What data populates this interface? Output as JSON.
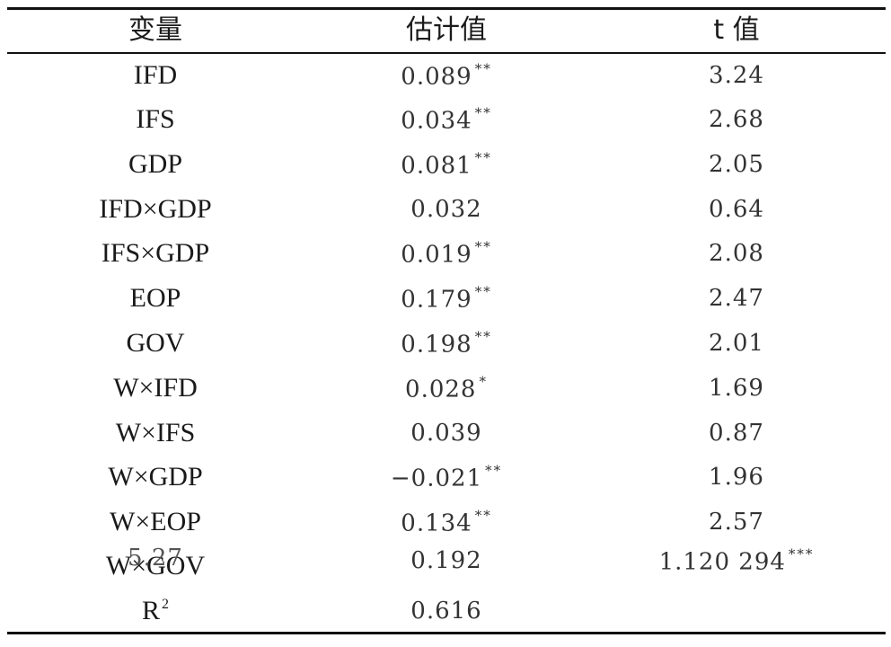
{
  "table": {
    "headers": [
      "变量",
      "估计值",
      "t 值"
    ],
    "rows": [
      {
        "variable": "IFD",
        "estimate": "0.089",
        "estimate_sig": "**",
        "t": "3.24",
        "t_sig": ""
      },
      {
        "variable": "IFS",
        "estimate": "0.034",
        "estimate_sig": "**",
        "t": "2.68",
        "t_sig": ""
      },
      {
        "variable": "GDP",
        "estimate": "0.081",
        "estimate_sig": "**",
        "t": "2.05",
        "t_sig": ""
      },
      {
        "variable": "IFD×GDP",
        "estimate": "0.032",
        "estimate_sig": "",
        "t": "0.64",
        "t_sig": ""
      },
      {
        "variable": "IFS×GDP",
        "estimate": "0.019",
        "estimate_sig": "**",
        "t": "2.08",
        "t_sig": ""
      },
      {
        "variable": "EOP",
        "estimate": "0.179",
        "estimate_sig": "**",
        "t": "2.47",
        "t_sig": ""
      },
      {
        "variable": "GOV",
        "estimate": "0.198",
        "estimate_sig": "**",
        "t": "2.01",
        "t_sig": ""
      },
      {
        "variable": "W×IFD",
        "estimate": "0.028",
        "estimate_sig": "*",
        "t": "1.69",
        "t_sig": ""
      },
      {
        "variable": "W×IFS",
        "estimate": "0.039",
        "estimate_sig": "",
        "t": "0.87",
        "t_sig": ""
      },
      {
        "variable": "W×GDP",
        "estimate": "−0.021",
        "estimate_sig": "**",
        "t": "1.96",
        "t_sig": ""
      },
      {
        "variable": "W×EOP",
        "estimate": "0.134",
        "estimate_sig": "**",
        "t": "2.57",
        "t_sig": ""
      },
      {
        "variable": "W×GOV",
        "estimate": "0.192",
        "estimate_sig": "",
        "t": "1.120 294",
        "t_sig": "***"
      },
      {
        "variable": "R",
        "variable_sup": "2",
        "estimate": "0.616",
        "estimate_sig": "",
        "t": "",
        "t_sig": ""
      }
    ],
    "overlap_text": "5.27"
  }
}
